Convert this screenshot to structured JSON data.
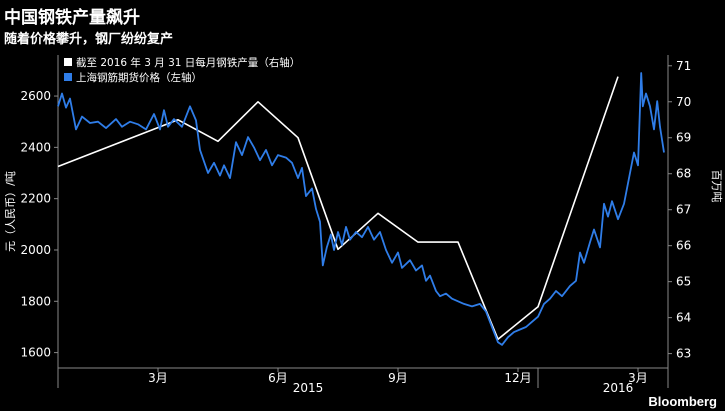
{
  "title": "中国钢铁产量飙升",
  "subtitle": "随着价格攀升，钢厂纷纷复产",
  "brand": "Bloomberg",
  "chart_data": {
    "type": "line",
    "title": "中国钢铁产量飙升",
    "subtitle": "随着价格攀升，钢厂纷纷复产",
    "ylabel_left": "元（人民币）/吨",
    "ylabel_right": "百万吨",
    "ylim_left": [
      1540,
      2760
    ],
    "ylim_right": [
      62.6,
      71.3
    ],
    "yticks_left": [
      1600,
      1800,
      2000,
      2200,
      2400,
      2600
    ],
    "yticks_right": [
      63,
      64,
      65,
      66,
      67,
      68,
      69,
      70,
      71
    ],
    "xlim": [
      0,
      15.25
    ],
    "xticks": [
      {
        "x": 2.5,
        "label": "3月"
      },
      {
        "x": 5.5,
        "label": "6月"
      },
      {
        "x": 8.5,
        "label": "9月"
      },
      {
        "x": 11.5,
        "label": "12月"
      },
      {
        "x": 14.5,
        "label": "3月"
      }
    ],
    "year_labels": [
      {
        "x": 6.25,
        "label": "2015"
      },
      {
        "x": 14.0,
        "label": "2016"
      }
    ],
    "legend_position": "top-left",
    "grid": false,
    "series": [
      {
        "name": "截至 2016 年 3 月 31 日每月钢铁产量（右轴）",
        "axis": "right",
        "color": "#ffffff",
        "points": [
          [
            0.0,
            68.2
          ],
          [
            3.0,
            69.5
          ],
          [
            4.0,
            68.9
          ],
          [
            5.0,
            70.0
          ],
          [
            6.0,
            69.0
          ],
          [
            7.0,
            65.9
          ],
          [
            8.0,
            66.9
          ],
          [
            9.0,
            66.1
          ],
          [
            10.0,
            66.1
          ],
          [
            11.0,
            63.4
          ],
          [
            12.0,
            64.3
          ],
          [
            14.0,
            70.7
          ]
        ]
      },
      {
        "name": "上海钢筋期货价格（左轴）",
        "axis": "left",
        "color": "#2f7de8",
        "points": [
          [
            0.0,
            2560
          ],
          [
            0.1,
            2610
          ],
          [
            0.2,
            2555
          ],
          [
            0.3,
            2590
          ],
          [
            0.45,
            2470
          ],
          [
            0.6,
            2520
          ],
          [
            0.8,
            2495
          ],
          [
            1.0,
            2500
          ],
          [
            1.2,
            2475
          ],
          [
            1.45,
            2510
          ],
          [
            1.6,
            2480
          ],
          [
            1.8,
            2500
          ],
          [
            2.0,
            2490
          ],
          [
            2.2,
            2470
          ],
          [
            2.4,
            2530
          ],
          [
            2.55,
            2470
          ],
          [
            2.65,
            2545
          ],
          [
            2.75,
            2480
          ],
          [
            2.9,
            2510
          ],
          [
            3.1,
            2480
          ],
          [
            3.3,
            2560
          ],
          [
            3.45,
            2505
          ],
          [
            3.55,
            2390
          ],
          [
            3.75,
            2300
          ],
          [
            3.9,
            2340
          ],
          [
            4.05,
            2290
          ],
          [
            4.15,
            2330
          ],
          [
            4.3,
            2280
          ],
          [
            4.45,
            2420
          ],
          [
            4.6,
            2370
          ],
          [
            4.75,
            2440
          ],
          [
            4.9,
            2400
          ],
          [
            5.05,
            2350
          ],
          [
            5.2,
            2390
          ],
          [
            5.35,
            2330
          ],
          [
            5.5,
            2370
          ],
          [
            5.7,
            2360
          ],
          [
            5.85,
            2340
          ],
          [
            6.0,
            2280
          ],
          [
            6.1,
            2320
          ],
          [
            6.2,
            2210
          ],
          [
            6.35,
            2240
          ],
          [
            6.45,
            2160
          ],
          [
            6.55,
            2110
          ],
          [
            6.62,
            1940
          ],
          [
            6.72,
            2010
          ],
          [
            6.82,
            2060
          ],
          [
            6.9,
            2000
          ],
          [
            7.0,
            2070
          ],
          [
            7.1,
            2020
          ],
          [
            7.2,
            2090
          ],
          [
            7.3,
            2040
          ],
          [
            7.45,
            2070
          ],
          [
            7.6,
            2050
          ],
          [
            7.75,
            2090
          ],
          [
            7.9,
            2040
          ],
          [
            8.05,
            2070
          ],
          [
            8.2,
            2000
          ],
          [
            8.35,
            1950
          ],
          [
            8.5,
            1990
          ],
          [
            8.6,
            1930
          ],
          [
            8.8,
            1960
          ],
          [
            8.95,
            1920
          ],
          [
            9.1,
            1940
          ],
          [
            9.2,
            1880
          ],
          [
            9.3,
            1900
          ],
          [
            9.45,
            1840
          ],
          [
            9.55,
            1820
          ],
          [
            9.7,
            1830
          ],
          [
            9.85,
            1810
          ],
          [
            10.0,
            1800
          ],
          [
            10.15,
            1790
          ],
          [
            10.35,
            1780
          ],
          [
            10.55,
            1790
          ],
          [
            10.7,
            1760
          ],
          [
            10.85,
            1700
          ],
          [
            11.0,
            1640
          ],
          [
            11.1,
            1630
          ],
          [
            11.25,
            1660
          ],
          [
            11.4,
            1680
          ],
          [
            11.55,
            1690
          ],
          [
            11.7,
            1700
          ],
          [
            11.85,
            1720
          ],
          [
            12.0,
            1740
          ],
          [
            12.15,
            1790
          ],
          [
            12.3,
            1810
          ],
          [
            12.45,
            1840
          ],
          [
            12.6,
            1820
          ],
          [
            12.8,
            1860
          ],
          [
            12.95,
            1880
          ],
          [
            13.05,
            1990
          ],
          [
            13.15,
            1950
          ],
          [
            13.3,
            2030
          ],
          [
            13.4,
            2080
          ],
          [
            13.55,
            2010
          ],
          [
            13.65,
            2180
          ],
          [
            13.75,
            2130
          ],
          [
            13.85,
            2190
          ],
          [
            14.0,
            2120
          ],
          [
            14.15,
            2180
          ],
          [
            14.3,
            2300
          ],
          [
            14.4,
            2380
          ],
          [
            14.5,
            2330
          ],
          [
            14.58,
            2690
          ],
          [
            14.62,
            2560
          ],
          [
            14.7,
            2610
          ],
          [
            14.8,
            2560
          ],
          [
            14.9,
            2470
          ],
          [
            14.98,
            2580
          ],
          [
            15.05,
            2480
          ],
          [
            15.15,
            2380
          ]
        ]
      }
    ]
  }
}
